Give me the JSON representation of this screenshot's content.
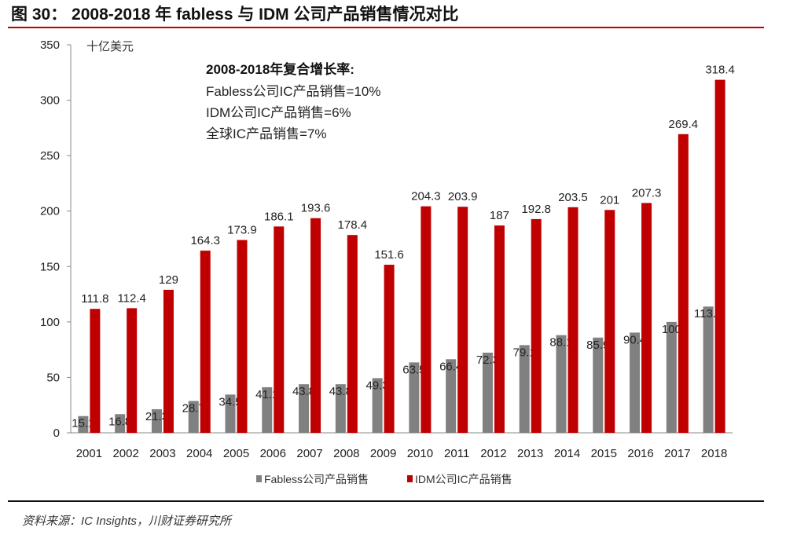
{
  "figure": {
    "title": "图 30：  2008-2018 年 fabless 与 IDM 公司产品销售情况对比",
    "source": "资料来源：IC Insights，川财证券研究所"
  },
  "chart_data": {
    "type": "bar",
    "ylabel": "十亿美元",
    "ylim": [
      0,
      350
    ],
    "yticks": [
      0,
      50,
      100,
      150,
      200,
      250,
      300,
      350
    ],
    "grid": false,
    "legend_position": "bottom",
    "categories": [
      "2001",
      "2002",
      "2003",
      "2004",
      "2005",
      "2006",
      "2007",
      "2008",
      "2009",
      "2010",
      "2011",
      "2012",
      "2013",
      "2014",
      "2015",
      "2016",
      "2017",
      "2018"
    ],
    "series": [
      {
        "name": "Fabless公司产品销售",
        "color": "#808080",
        "values": [
          15.1,
          16.8,
          21.3,
          28.7,
          34.5,
          41.1,
          43.8,
          43.8,
          49.3,
          63.5,
          66.4,
          72.3,
          79.1,
          88.1,
          85.9,
          90.4,
          100,
          113.9
        ]
      },
      {
        "name": "IDM公司IC产品销售",
        "color": "#C00000",
        "values": [
          111.8,
          112.4,
          129,
          164.3,
          173.9,
          186.1,
          193.6,
          178.4,
          151.6,
          204.3,
          203.9,
          187,
          192.8,
          203.5,
          201,
          207.3,
          269.4,
          318.4
        ]
      }
    ],
    "annotation": {
      "heading": "2008-2018年复合增长率:",
      "lines": [
        "Fabless公司IC产品销售=10%",
        "IDM公司IC产品销售=6%",
        "全球IC产品销售=7%"
      ]
    }
  }
}
